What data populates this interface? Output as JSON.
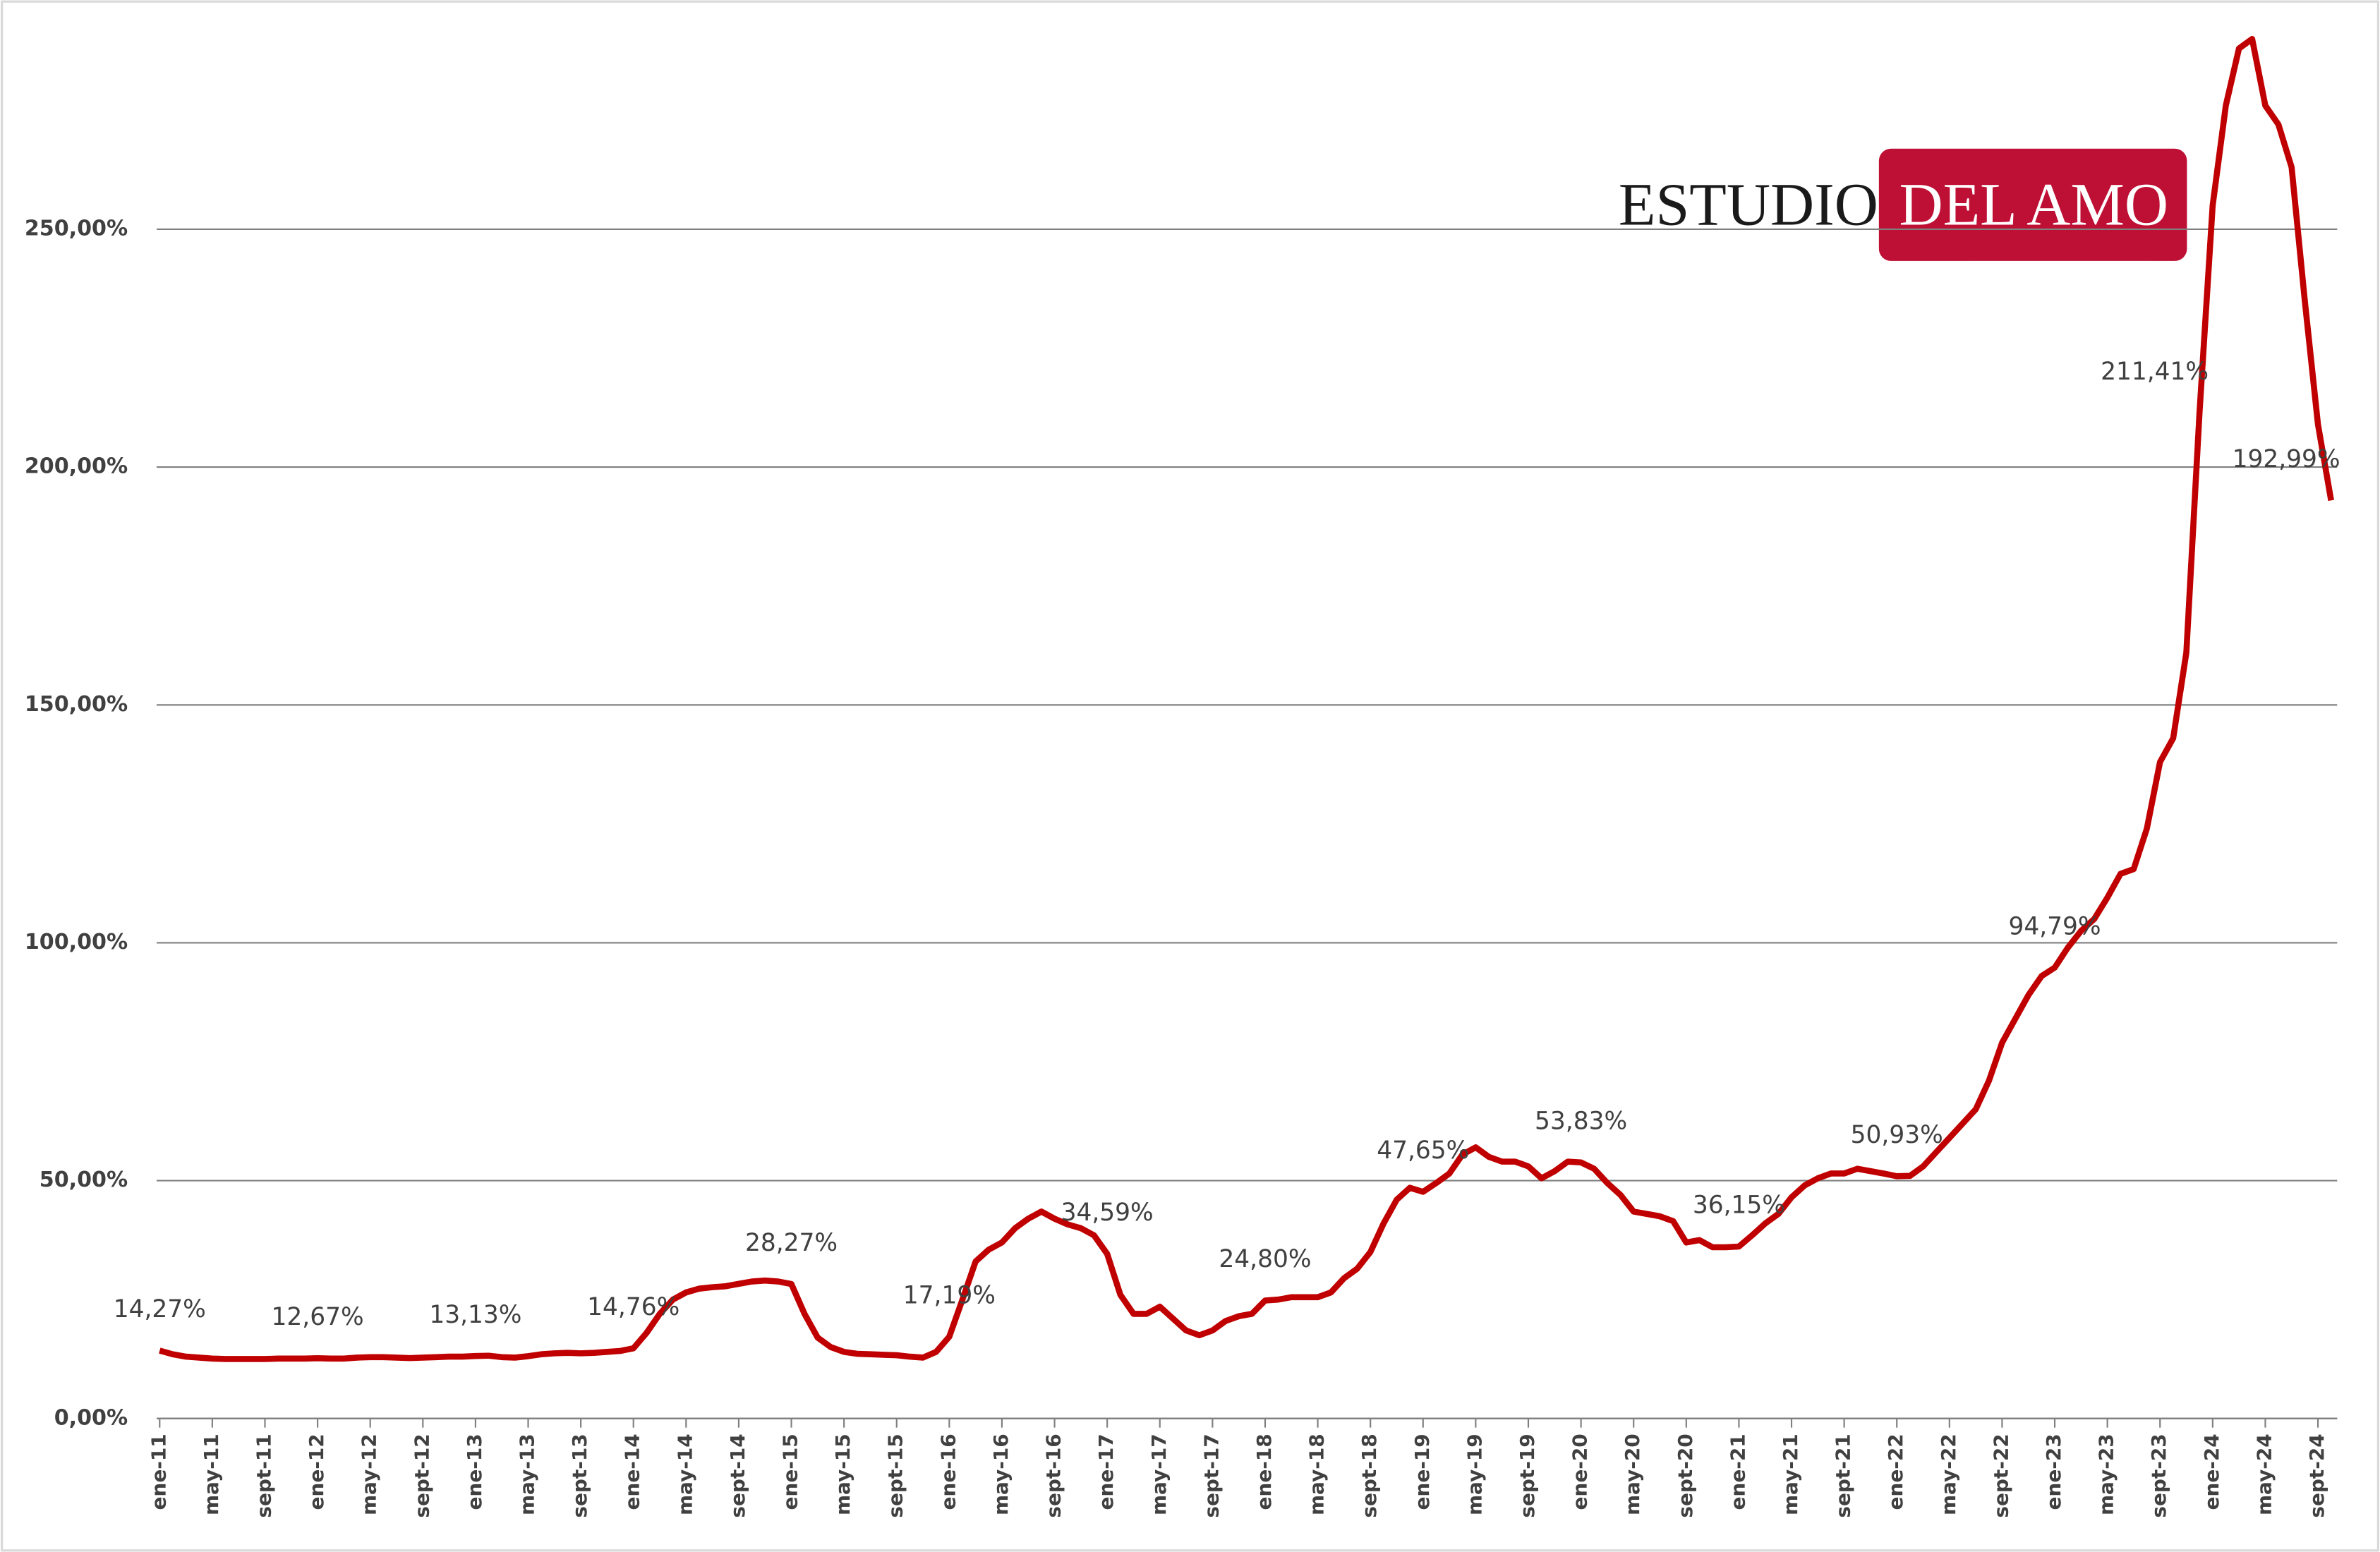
{
  "logo": {
    "left": "ESTUDIO",
    "right": "DEL AMO"
  },
  "chart_data": {
    "type": "line",
    "color": "#c00000",
    "grid": true,
    "ylim": [
      0,
      295
    ],
    "yticks": [
      {
        "value": 0,
        "label": "0,00%"
      },
      {
        "value": 50,
        "label": "50,00%"
      },
      {
        "value": 100,
        "label": "100,00%"
      },
      {
        "value": 150,
        "label": "150,00%"
      },
      {
        "value": 200,
        "label": "200,00%"
      },
      {
        "value": 250,
        "label": "250,00%"
      }
    ],
    "categories": [
      "ene-11",
      null,
      null,
      null,
      "may-11",
      null,
      null,
      null,
      "sept-11",
      null,
      null,
      null,
      "ene-12",
      null,
      null,
      null,
      "may-12",
      null,
      null,
      null,
      "sept-12",
      null,
      null,
      null,
      "ene-13",
      null,
      null,
      null,
      "may-13",
      null,
      null,
      null,
      "sept-13",
      null,
      null,
      null,
      "ene-14",
      null,
      null,
      null,
      "may-14",
      null,
      null,
      null,
      "sept-14",
      null,
      null,
      null,
      "ene-15",
      null,
      null,
      null,
      "may-15",
      null,
      null,
      null,
      "sept-15",
      null,
      null,
      null,
      "ene-16",
      null,
      null,
      null,
      "may-16",
      null,
      null,
      null,
      "sept-16",
      null,
      null,
      null,
      "ene-17",
      null,
      null,
      null,
      "may-17",
      null,
      null,
      null,
      "sept-17",
      null,
      null,
      null,
      "ene-18",
      null,
      null,
      null,
      "may-18",
      null,
      null,
      null,
      "sept-18",
      null,
      null,
      null,
      "ene-19",
      null,
      null,
      null,
      "may-19",
      null,
      null,
      null,
      "sept-19",
      null,
      null,
      null,
      "ene-20",
      null,
      null,
      null,
      "may-20",
      null,
      null,
      null,
      "sept-20",
      null,
      null,
      null,
      "ene-21",
      null,
      null,
      null,
      "may-21",
      null,
      null,
      null,
      "sept-21",
      null,
      null,
      null,
      "ene-22",
      null,
      null,
      null,
      "may-22",
      null,
      null,
      null,
      "sept-22",
      null,
      null,
      null,
      "ene-23",
      null,
      null,
      null,
      "may-23",
      null,
      null,
      null,
      "sept-23",
      null,
      null,
      null,
      "ene-24",
      null,
      null,
      null,
      "may-24",
      null,
      null,
      null,
      "sept-24",
      null
    ],
    "values": [
      14.27,
      13.5,
      13,
      12.8,
      12.6,
      12.5,
      12.5,
      12.5,
      12.5,
      12.6,
      12.6,
      12.6,
      12.67,
      12.6,
      12.6,
      12.8,
      12.9,
      12.9,
      12.8,
      12.7,
      12.8,
      12.9,
      13,
      13,
      13.13,
      13.2,
      12.9,
      12.8,
      13.1,
      13.5,
      13.7,
      13.8,
      13.7,
      13.8,
      14,
      14.2,
      14.76,
      18,
      22,
      25,
      26.5,
      27.3,
      27.6,
      27.8,
      28.3,
      28.8,
      29,
      28.8,
      28.27,
      22,
      17,
      15,
      14,
      13.6,
      13.5,
      13.4,
      13.3,
      13,
      12.8,
      14,
      17.19,
      25,
      33,
      35.5,
      37,
      40,
      42,
      43.5,
      42,
      40.8,
      40,
      38.5,
      34.59,
      26,
      22,
      22,
      23.5,
      21,
      18.5,
      17.5,
      18.5,
      20.5,
      21.5,
      22,
      24.8,
      25,
      25.5,
      25.5,
      25.5,
      26.5,
      29.5,
      31.5,
      35,
      41,
      46,
      48.5,
      47.65,
      49.5,
      51.5,
      55.5,
      57,
      55,
      54,
      54,
      53,
      50.5,
      52,
      54,
      53.83,
      52.5,
      49.5,
      47,
      43.5,
      43,
      42.5,
      41.5,
      37,
      37.5,
      36,
      36,
      36.15,
      38.5,
      41,
      43,
      46.5,
      49,
      50.5,
      51.5,
      51.5,
      52.5,
      52,
      51.5,
      50.93,
      51,
      53,
      56,
      59,
      62,
      65,
      71,
      79,
      84,
      89,
      93,
      94.79,
      99,
      102.5,
      105,
      109.5,
      114.5,
      115.5,
      124,
      138,
      143,
      161,
      211.41,
      255,
      276,
      288,
      290,
      276,
      272,
      263,
      235,
      209,
      192.99
    ],
    "value_labels": [
      "14,27%",
      null,
      null,
      null,
      null,
      null,
      null,
      null,
      null,
      null,
      null,
      null,
      "12,67%",
      null,
      null,
      null,
      null,
      null,
      null,
      null,
      null,
      null,
      null,
      null,
      "13,13%",
      null,
      null,
      null,
      null,
      null,
      null,
      null,
      null,
      null,
      null,
      null,
      "14,76%",
      null,
      null,
      null,
      null,
      null,
      null,
      null,
      null,
      null,
      null,
      null,
      "28,27%",
      null,
      null,
      null,
      null,
      null,
      null,
      null,
      null,
      null,
      null,
      null,
      "17,19%",
      null,
      null,
      null,
      null,
      null,
      null,
      null,
      null,
      null,
      null,
      null,
      "34,59%",
      null,
      null,
      null,
      null,
      null,
      null,
      null,
      null,
      null,
      null,
      null,
      "24,80%",
      null,
      null,
      null,
      null,
      null,
      null,
      null,
      null,
      null,
      null,
      null,
      "47,65%",
      null,
      null,
      null,
      null,
      null,
      null,
      null,
      null,
      null,
      null,
      null,
      "53,83%",
      null,
      null,
      null,
      null,
      null,
      null,
      null,
      null,
      null,
      null,
      null,
      "36,15%",
      null,
      null,
      null,
      null,
      null,
      null,
      null,
      null,
      null,
      null,
      null,
      "50,93%",
      null,
      null,
      null,
      null,
      null,
      null,
      null,
      null,
      null,
      null,
      null,
      "94,79%",
      null,
      null,
      null,
      null,
      null,
      null,
      null,
      null,
      null,
      null,
      "211,41%",
      null,
      null,
      null,
      null,
      null,
      null,
      null,
      null,
      null,
      "192,99%"
    ]
  }
}
